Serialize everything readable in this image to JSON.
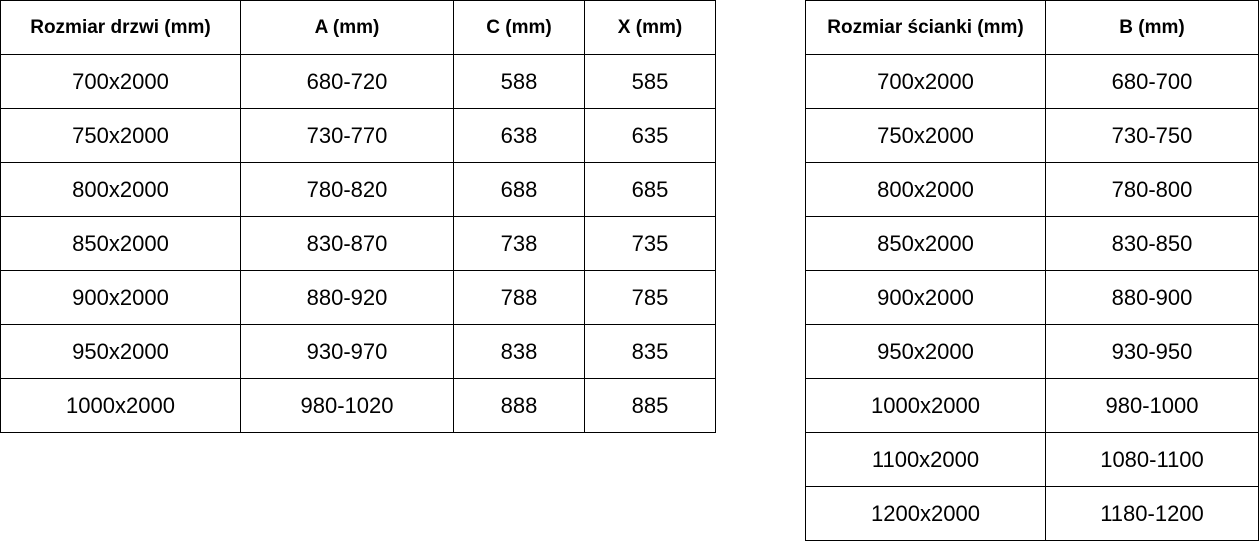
{
  "door_table": {
    "headers": [
      "Rozmiar drzwi (mm)",
      "A (mm)",
      "C (mm)",
      "X (mm)"
    ],
    "rows": [
      [
        "700x2000",
        "680-720",
        "588",
        "585"
      ],
      [
        "750x2000",
        "730-770",
        "638",
        "635"
      ],
      [
        "800x2000",
        "780-820",
        "688",
        "685"
      ],
      [
        "850x2000",
        "830-870",
        "738",
        "735"
      ],
      [
        "900x2000",
        "880-920",
        "788",
        "785"
      ],
      [
        "950x2000",
        "930-970",
        "838",
        "835"
      ],
      [
        "1000x2000",
        "980-1020",
        "888",
        "885"
      ]
    ]
  },
  "wall_table": {
    "headers": [
      "Rozmiar ścianki (mm)",
      "B (mm)"
    ],
    "rows": [
      [
        "700x2000",
        "680-700"
      ],
      [
        "750x2000",
        "730-750"
      ],
      [
        "800x2000",
        "780-800"
      ],
      [
        "850x2000",
        "830-850"
      ],
      [
        "900x2000",
        "880-900"
      ],
      [
        "950x2000",
        "930-950"
      ],
      [
        "1000x2000",
        "980-1000"
      ],
      [
        "1100x2000",
        "1080-1100"
      ],
      [
        "1200x2000",
        "1180-1200"
      ]
    ]
  }
}
